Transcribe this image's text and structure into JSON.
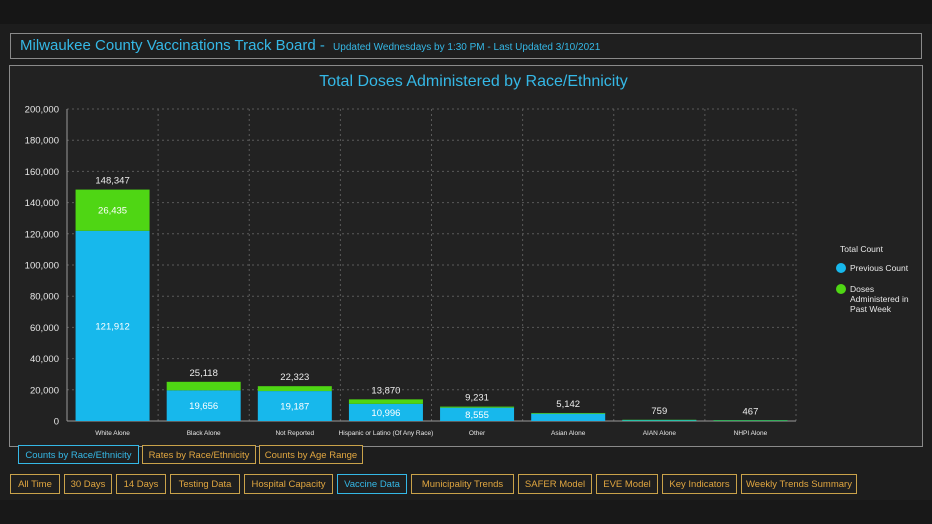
{
  "header": {
    "title": "Milwaukee County Vaccinations Track Board",
    "separator": " - ",
    "subtitle": "Updated Wednesdays by 1:30 PM - Last Updated 3/10/2021"
  },
  "colors": {
    "previous": "#17b8ec",
    "past_week": "#4fd614",
    "title": "#35b8e6",
    "tab_border": "#c9a24a",
    "tab_text": "#e0a640"
  },
  "chart_data": {
    "type": "bar",
    "stacked": true,
    "title": "Total Doses Administered by Race/Ethnicity",
    "categories": [
      "White Alone",
      "Black Alone",
      "Not Reported",
      "Hispanic or Latino (Of Any Race)",
      "Other",
      "Asian Alone",
      "AIAN Alone",
      "NHPI Alone"
    ],
    "series": [
      {
        "name": "Previous Count",
        "values": [
          121912,
          19656,
          19187,
          10996,
          8555,
          4700,
          700,
          430
        ]
      },
      {
        "name": "Doses Administered in Past Week",
        "values": [
          26435,
          5462,
          3136,
          2874,
          676,
          442,
          59,
          37
        ]
      }
    ],
    "totals": [
      148347,
      25118,
      22323,
      13870,
      9231,
      5142,
      759,
      467
    ],
    "labeled_previous": [
      "121,912",
      "19,656",
      "19,187",
      "10,996",
      "8,555",
      "",
      "",
      ""
    ],
    "labeled_week": [
      "26,435",
      "",
      "",
      "",
      "",
      "",
      "",
      ""
    ],
    "total_labels": [
      "148,347",
      "25,118",
      "22,323",
      "13,870",
      "9,231",
      "5,142",
      "759",
      "467"
    ],
    "yticks": [
      "0",
      "20,000",
      "40,000",
      "60,000",
      "80,000",
      "100,000",
      "120,000",
      "140,000",
      "160,000",
      "180,000",
      "200,000"
    ],
    "ylim": [
      0,
      200000
    ],
    "grid": true,
    "legend": {
      "title": "Total Count",
      "placement": "right",
      "items": [
        {
          "label_lines": [
            "Previous Count"
          ]
        },
        {
          "label_lines": [
            "Doses",
            "Administered in",
            "Past Week"
          ]
        }
      ]
    }
  },
  "subtabs": [
    {
      "label": "Counts by Race/Ethnicity",
      "active": true
    },
    {
      "label": "Rates by Race/Ethnicity",
      "active": false
    },
    {
      "label": "Counts by Age Range",
      "active": false
    }
  ],
  "navtabs": [
    {
      "label": "All Time",
      "active": false
    },
    {
      "label": "30 Days",
      "active": false
    },
    {
      "label": "14 Days",
      "active": false
    },
    {
      "label": "Testing Data",
      "active": false
    },
    {
      "label": "Hospital Capacity",
      "active": false
    },
    {
      "label": "Vaccine Data",
      "active": true
    },
    {
      "label": "Municipality Trends",
      "active": false
    },
    {
      "label": "SAFER Model",
      "active": false
    },
    {
      "label": "EVE Model",
      "active": false
    },
    {
      "label": "Key Indicators",
      "active": false
    },
    {
      "label": "Weekly Trends Summary",
      "active": false
    }
  ]
}
